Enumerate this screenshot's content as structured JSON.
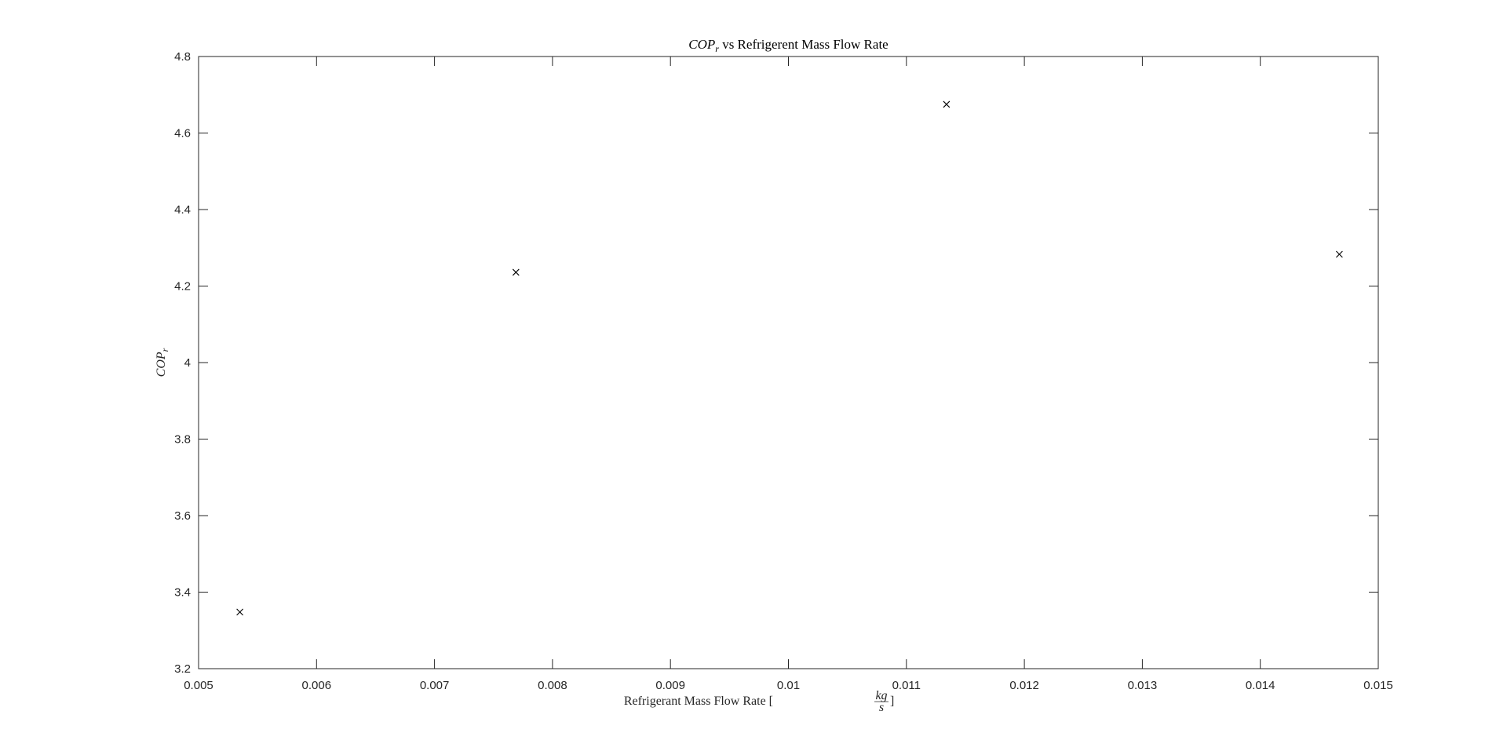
{
  "chart_data": {
    "type": "scatter",
    "title": {
      "main": "COP",
      "sub": "r",
      "rest": " vs Refrigerent Mass Flow Rate"
    },
    "xlabel": {
      "text": "Refrigerant Mass Flow Rate [",
      "frac_num": "kg",
      "frac_den": "s",
      "close": "]"
    },
    "ylabel": {
      "main": "COP",
      "sub": "r"
    },
    "xlim": [
      0.005,
      0.015
    ],
    "ylim": [
      3.2,
      4.8
    ],
    "xticks": [
      "0.005",
      "0.006",
      "0.007",
      "0.008",
      "0.009",
      "0.01",
      "0.011",
      "0.012",
      "0.013",
      "0.014",
      "0.015"
    ],
    "yticks": [
      "3.2",
      "3.4",
      "3.6",
      "3.8",
      "4",
      "4.2",
      "4.4",
      "4.6",
      "4.8"
    ],
    "marker": "x",
    "grid": false,
    "colors": {
      "axis": "#262626",
      "marker": "#000000"
    },
    "points": [
      {
        "x": 0.00535,
        "y": 3.348
      },
      {
        "x": 0.00769,
        "y": 4.236
      },
      {
        "x": 0.01134,
        "y": 4.675
      },
      {
        "x": 0.01467,
        "y": 4.283
      }
    ]
  }
}
